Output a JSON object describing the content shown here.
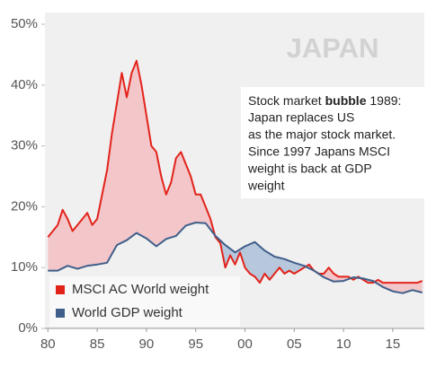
{
  "chart_data": {
    "type": "line",
    "title": "JAPAN",
    "annotation": [
      [
        "Stock market ",
        "bubble",
        " 1989:"
      ],
      [
        "Japan replaces US"
      ],
      [
        "as the major stock market."
      ],
      [
        "Since 1997 Japans MSCI"
      ],
      [
        "weight is back at GDP"
      ],
      [
        "weight"
      ]
    ],
    "xlim": [
      1979.7,
      2018.2
    ],
    "xticks": [
      {
        "value": 1980,
        "label": "80"
      },
      {
        "value": 1985,
        "label": "85"
      },
      {
        "value": 1990,
        "label": "90"
      },
      {
        "value": 1995,
        "label": "95"
      },
      {
        "value": 2000,
        "label": "00"
      },
      {
        "value": 2005,
        "label": "05"
      },
      {
        "value": 2010,
        "label": "10"
      },
      {
        "value": 2015,
        "label": "15"
      }
    ],
    "ylim": [
      0,
      50
    ],
    "yticks": [
      {
        "value": 0,
        "label": "0%"
      },
      {
        "value": 10,
        "label": "10%"
      },
      {
        "value": 20,
        "label": "20%"
      },
      {
        "value": 30,
        "label": "30%"
      },
      {
        "value": 40,
        "label": "40%"
      },
      {
        "value": 50,
        "label": "50%"
      }
    ],
    "series": [
      {
        "name": "MSCI AC World weight",
        "color": "#e2231a",
        "x": [
          1980,
          1980.5,
          1981,
          1981.5,
          1982,
          1982.5,
          1983,
          1983.5,
          1984,
          1984.5,
          1985,
          1985.5,
          1986,
          1986.5,
          1987,
          1987.5,
          1988,
          1988.5,
          1989,
          1989.5,
          1990,
          1990.5,
          1991,
          1991.5,
          1992,
          1992.5,
          1993,
          1993.5,
          1994,
          1994.5,
          1995,
          1995.5,
          1996,
          1996.5,
          1997,
          1997.5,
          1998,
          1998.5,
          1999,
          1999.5,
          2000,
          2000.5,
          2001,
          2001.5,
          2002,
          2002.5,
          2003,
          2003.5,
          2004,
          2004.5,
          2005,
          2005.5,
          2006,
          2006.5,
          2007,
          2007.5,
          2008,
          2008.5,
          2009,
          2009.5,
          2010,
          2010.5,
          2011,
          2011.5,
          2012,
          2012.5,
          2013,
          2013.5,
          2014,
          2014.5,
          2015,
          2015.5,
          2016,
          2016.5,
          2017,
          2017.5,
          2018
        ],
        "values": [
          15,
          16,
          17,
          19.5,
          18,
          16,
          17,
          18,
          19,
          17,
          18,
          22,
          26,
          32,
          37,
          42,
          38,
          42,
          44,
          40,
          35,
          30,
          29,
          25,
          22,
          24,
          28,
          29,
          27,
          25,
          22,
          22,
          20,
          18,
          15,
          14,
          10,
          12,
          10.5,
          12.5,
          10,
          9,
          8.5,
          7.5,
          9,
          8,
          9,
          10,
          9,
          9.5,
          9,
          9.5,
          10,
          10.5,
          9.5,
          9,
          9,
          10,
          9,
          8.5,
          8.5,
          8.5,
          8,
          8.5,
          8,
          7.5,
          7.5,
          8,
          7.5,
          7.5,
          7.5,
          7.5,
          7.5,
          7.5,
          7.5,
          7.5,
          7.8
        ]
      },
      {
        "name": "World GDP weight",
        "color": "#3f5f8a",
        "x": [
          1980,
          1981,
          1982,
          1983,
          1984,
          1985,
          1986,
          1987,
          1988,
          1989,
          1990,
          1991,
          1992,
          1993,
          1994,
          1995,
          1996,
          1997,
          1998,
          1999,
          2000,
          2001,
          2002,
          2003,
          2004,
          2005,
          2006,
          2007,
          2008,
          2009,
          2010,
          2011,
          2012,
          2013,
          2014,
          2015,
          2016,
          2017,
          2018
        ],
        "values": [
          9.5,
          9.5,
          10.3,
          9.8,
          10.3,
          10.5,
          10.8,
          13.7,
          14.5,
          15.7,
          14.8,
          13.5,
          14.7,
          15.2,
          16.9,
          17.4,
          17.3,
          15.2,
          13.7,
          12.5,
          13.5,
          14.2,
          12.8,
          11.8,
          11.4,
          10.8,
          10.3,
          9.5,
          8.4,
          7.7,
          7.8,
          8.4,
          8.2,
          7.8,
          6.8,
          6.1,
          5.8,
          6.3,
          5.9
        ]
      }
    ]
  }
}
